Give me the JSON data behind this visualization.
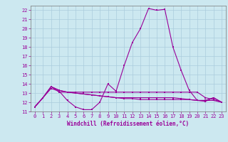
{
  "xlabel": "Windchill (Refroidissement éolien,°C)",
  "x": [
    0,
    1,
    2,
    3,
    4,
    5,
    6,
    7,
    8,
    9,
    10,
    11,
    12,
    13,
    14,
    15,
    16,
    17,
    18,
    19,
    20,
    21,
    22,
    23
  ],
  "line1": [
    11.5,
    12.5,
    13.5,
    13.2,
    12.2,
    11.5,
    11.2,
    11.2,
    12.0,
    14.0,
    13.2,
    16.0,
    18.5,
    20.0,
    22.2,
    22.0,
    22.1,
    18.0,
    15.5,
    13.3,
    12.2,
    12.1,
    12.5,
    12.0
  ],
  "line2": [
    11.5,
    12.5,
    13.7,
    13.1,
    13.1,
    13.1,
    13.1,
    13.1,
    13.1,
    13.1,
    13.1,
    13.1,
    13.1,
    13.1,
    13.1,
    13.1,
    13.1,
    13.1,
    13.1,
    13.1,
    13.1,
    12.5,
    12.3,
    12.0
  ],
  "line3": [
    11.5,
    12.5,
    13.7,
    13.3,
    13.1,
    13.0,
    12.9,
    12.8,
    12.7,
    12.6,
    12.5,
    12.4,
    12.4,
    12.3,
    12.3,
    12.3,
    12.3,
    12.3,
    12.3,
    12.3,
    12.2,
    12.2,
    12.2,
    12.0
  ],
  "line4": [
    11.5,
    12.5,
    13.7,
    13.3,
    13.1,
    13.0,
    12.9,
    12.8,
    12.7,
    12.6,
    12.5,
    12.5,
    12.5,
    12.5,
    12.5,
    12.5,
    12.5,
    12.5,
    12.4,
    12.3,
    12.2,
    12.2,
    12.5,
    12.0
  ],
  "line_color": "#990099",
  "bg_color": "#cce8f0",
  "grid_color": "#aaccdd",
  "ylim": [
    11,
    22.5
  ],
  "xlim": [
    -0.5,
    23.5
  ],
  "yticks": [
    11,
    12,
    13,
    14,
    15,
    16,
    17,
    18,
    19,
    20,
    21,
    22
  ],
  "xticks": [
    0,
    1,
    2,
    3,
    4,
    5,
    6,
    7,
    8,
    9,
    10,
    11,
    12,
    13,
    14,
    15,
    16,
    17,
    18,
    19,
    20,
    21,
    22,
    23
  ],
  "marker_size": 1.5,
  "line_width": 0.8,
  "tick_fontsize": 5.0,
  "xlabel_fontsize": 5.5
}
